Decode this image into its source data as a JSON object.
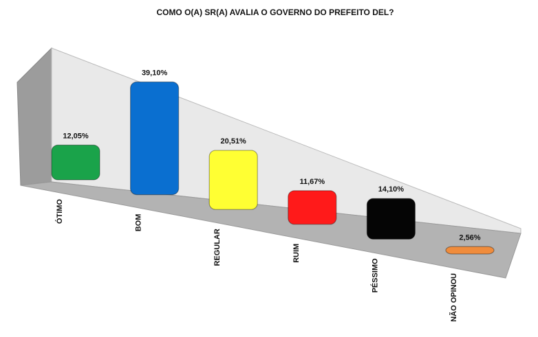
{
  "chart_data": {
    "type": "bar3d",
    "title": "COMO O(A) SR(A) AVALIA O GOVERNO DO PREFEITO DEL?",
    "categories": [
      "ÓTIMO",
      "BOM",
      "REGULAR",
      "RUIM",
      "PÉSSIMO",
      "NÃO OPINOU"
    ],
    "values": [
      12.05,
      39.1,
      20.51,
      11.67,
      14.1,
      2.56
    ],
    "value_labels": [
      "12,05%",
      "39,10%",
      "20,51%",
      "11,67%",
      "14,10%",
      "2,56%"
    ],
    "colors": [
      "#1aa34a",
      "#0a6fd0",
      "#ffff33",
      "#ff1a1a",
      "#050505",
      "#f08c3c"
    ]
  }
}
